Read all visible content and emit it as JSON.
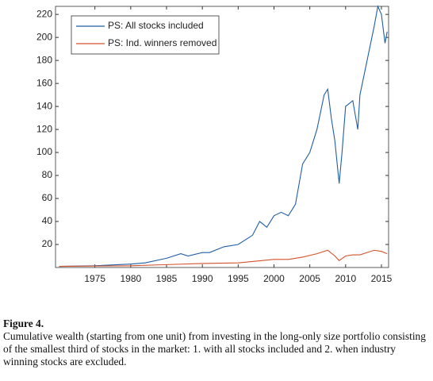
{
  "chart_data": {
    "type": "line",
    "series": [
      {
        "name": "PS: All stocks included",
        "color": "#1f5fa6",
        "x": [
          1970,
          1975,
          1980,
          1982,
          1985,
          1987,
          1988,
          1990,
          1991,
          1993,
          1995,
          1997,
          1998,
          1999,
          2000,
          2001,
          2002,
          2003,
          2004,
          2005,
          2006,
          2007,
          2007.5,
          2008,
          2008.5,
          2009.1,
          2009.5,
          2010,
          2011,
          2011.7,
          2012,
          2013,
          2014,
          2014.5,
          2015,
          2015.5,
          2015.8
        ],
        "values": [
          1,
          1.5,
          3,
          4,
          8,
          12,
          10,
          13,
          13,
          18,
          20,
          28,
          40,
          35,
          45,
          48,
          45,
          55,
          90,
          100,
          120,
          150,
          155,
          130,
          110,
          73,
          100,
          140,
          145,
          120,
          150,
          180,
          210,
          227,
          220,
          195,
          205
        ]
      },
      {
        "name": "PS: Ind. winners removed",
        "color": "#d4532a",
        "x": [
          1970,
          1980,
          1985,
          1990,
          1995,
          2000,
          2002,
          2004,
          2006,
          2007.5,
          2008.5,
          2009.1,
          2010,
          2011,
          2012,
          2013,
          2014,
          2015,
          2015.8
        ],
        "values": [
          1,
          1.5,
          2.5,
          3.5,
          4,
          7,
          7,
          9,
          12,
          15,
          10,
          6,
          10,
          11,
          11,
          13,
          15,
          14,
          12
        ]
      }
    ],
    "xlim": [
      1969.5,
      2016
    ],
    "xticks": [
      1975,
      1980,
      1985,
      1990,
      1995,
      2000,
      2005,
      2010,
      2015
    ],
    "ylim": [
      0,
      227
    ],
    "yticks": [
      20,
      40,
      60,
      80,
      100,
      120,
      140,
      160,
      180,
      200,
      220
    ],
    "legend": "upper left"
  },
  "caption": {
    "label": "Figure 4.",
    "text": "Cumulative wealth (starting from one unit) from investing in the long-only size portfolio consisting of the smallest third of stocks in the market: 1. with all stocks included and 2. when industry winning stocks are excluded."
  }
}
